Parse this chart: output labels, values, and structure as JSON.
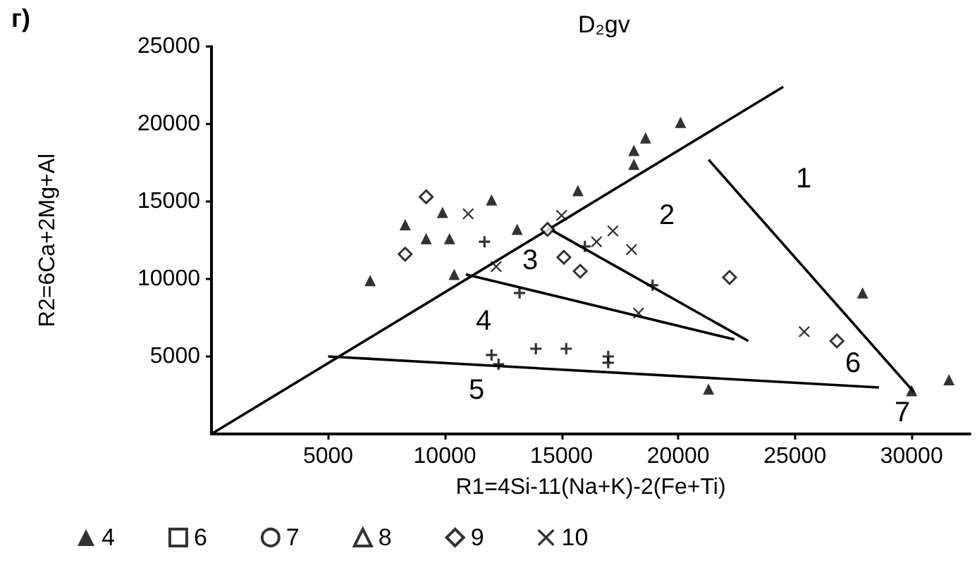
{
  "chart_data": {
    "type": "scatter",
    "title": "D₂gv",
    "xlabel": "R1=4Si-11(Na+K)-2(Fe+Ti)",
    "ylabel": "R2=6Ca+2Mg+Al",
    "annotations": [
      "г)",
      "1",
      "2",
      "3",
      "4",
      "5",
      "6",
      "7"
    ],
    "xlim": [
      0,
      32500
    ],
    "xticks": [
      5000,
      10000,
      15000,
      20000,
      25000,
      30000
    ],
    "ylim": [
      0,
      25000
    ],
    "yticks": [
      5000,
      10000,
      15000,
      20000,
      25000
    ],
    "grid": false,
    "legend": "bottom",
    "series": [
      {
        "name": "4",
        "color": "#000000",
        "marker": "triangle",
        "x": [
          6800,
          8300,
          9900,
          9200,
          10200,
          12000,
          10400,
          13100,
          15700,
          18100,
          18600,
          18100,
          20100,
          27900,
          31600,
          30000,
          21300
        ],
        "values": [
          9900,
          13500,
          14300,
          12600,
          12600,
          15100,
          10300,
          13200,
          15700,
          18300,
          19100,
          17400,
          20100,
          9100,
          3500,
          2800,
          2900
        ]
      },
      {
        "name": "6",
        "color": "#000000",
        "marker": "square"
      },
      {
        "name": "7",
        "color": "#000000",
        "marker": "circle"
      },
      {
        "name": "8",
        "color": "#000000",
        "marker": "triangle"
      },
      {
        "name": "9",
        "color": "#000000",
        "marker": "diamond",
        "x": [
          9200,
          8300,
          14400,
          15100,
          15800,
          22200,
          26800
        ],
        "values": [
          15300,
          11600,
          13200,
          11400,
          10500,
          10100,
          6000
        ]
      },
      {
        "name": "10",
        "color": "#000000",
        "marker": "x",
        "x": [
          11000,
          12200,
          15000,
          16500,
          17200,
          18000,
          18300,
          25400
        ],
        "values": [
          14200,
          10800,
          14100,
          12400,
          13100,
          11900,
          7800,
          6600
        ]
      },
      {
        "color": "#000000",
        "marker": "cross",
        "x": [
          11700,
          16000,
          18900,
          13200,
          12000,
          12300,
          13900,
          15200,
          17000,
          17000
        ],
        "values": [
          12400,
          12100,
          9600,
          9100,
          5100,
          4500,
          5500,
          5500,
          5000,
          4600
        ]
      },
      {
        "type": "line",
        "color": "#000000",
        "marker": "none",
        "x": [
          0,
          24500
        ],
        "values": [
          0,
          22400
        ]
      },
      {
        "type": "line",
        "color": "#000000",
        "marker": "none",
        "x": [
          5000,
          28600
        ],
        "values": [
          5000,
          3000
        ]
      },
      {
        "type": "line",
        "color": "#000000",
        "marker": "none",
        "x": [
          14400,
          23000
        ],
        "values": [
          13300,
          6000
        ]
      },
      {
        "type": "line",
        "color": "#000000",
        "marker": "none",
        "x": [
          10900,
          22400
        ],
        "values": [
          10300,
          6100
        ]
      },
      {
        "type": "line",
        "color": "#000000",
        "marker": "none",
        "x": [
          21300,
          30100
        ],
        "values": [
          17700,
          2700
        ]
      }
    ]
  }
}
